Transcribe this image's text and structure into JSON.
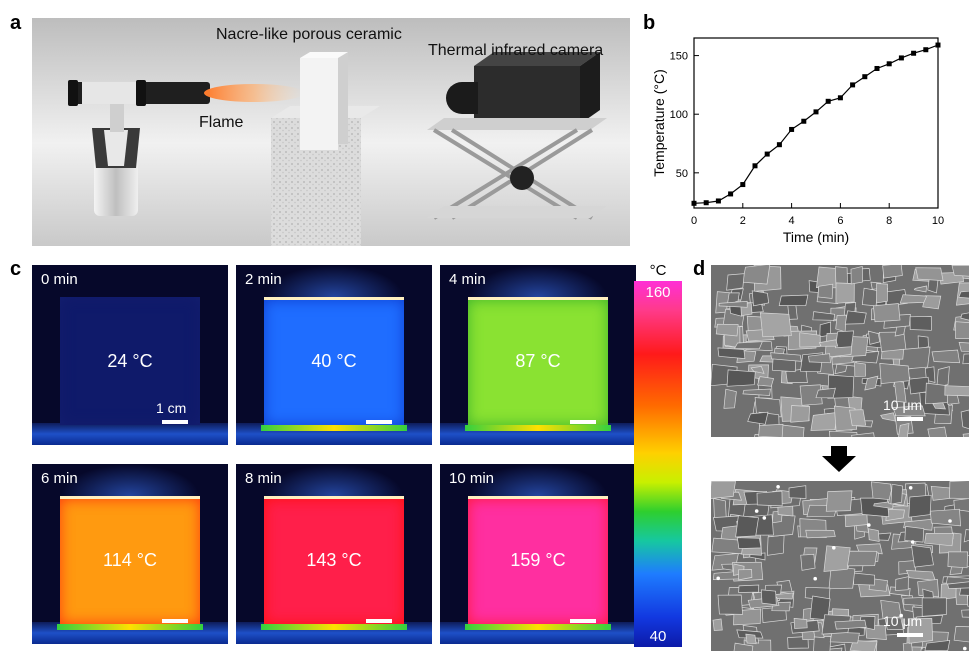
{
  "panel_letters": {
    "a": "a",
    "b": "b",
    "c": "c",
    "d": "d"
  },
  "panel_a": {
    "label_ceramic": "Nacre-like porous ceramic",
    "label_camera": "Thermal infrared camera",
    "label_flame": "Flame"
  },
  "chart_data": {
    "type": "line",
    "xlabel": "Time (min)",
    "ylabel": "Temperature (°C)",
    "xlim": [
      0,
      10
    ],
    "ylim": [
      20,
      165
    ],
    "xticks": [
      0,
      2,
      4,
      6,
      8,
      10
    ],
    "yticks": [
      50,
      100,
      150
    ],
    "x": [
      0,
      0.5,
      1,
      1.5,
      2,
      2.5,
      3,
      3.5,
      4,
      4.5,
      5,
      5.5,
      6,
      6.5,
      7,
      7.5,
      8,
      8.5,
      9,
      9.5,
      10
    ],
    "y": [
      24,
      24.5,
      26,
      32,
      40,
      56,
      66,
      74,
      87,
      94,
      102,
      111,
      114,
      125,
      132,
      139,
      143,
      148,
      152,
      155,
      159
    ],
    "marker": "square",
    "color": "#000000"
  },
  "panel_c": {
    "frames": [
      {
        "time": "0 min",
        "temp": "24 °C"
      },
      {
        "time": "2 min",
        "temp": "40 °C"
      },
      {
        "time": "4 min",
        "temp": "87 °C"
      },
      {
        "time": "6 min",
        "temp": "114 °C"
      },
      {
        "time": "8 min",
        "temp": "143 °C"
      },
      {
        "time": "10 min",
        "temp": "159 °C"
      }
    ],
    "scale_label": "1 cm",
    "colorbar": {
      "unit": "°C",
      "max": "160",
      "min": "40"
    }
  },
  "panel_d": {
    "scale_label_top": "10 μm",
    "scale_label_bottom": "10 μm"
  }
}
